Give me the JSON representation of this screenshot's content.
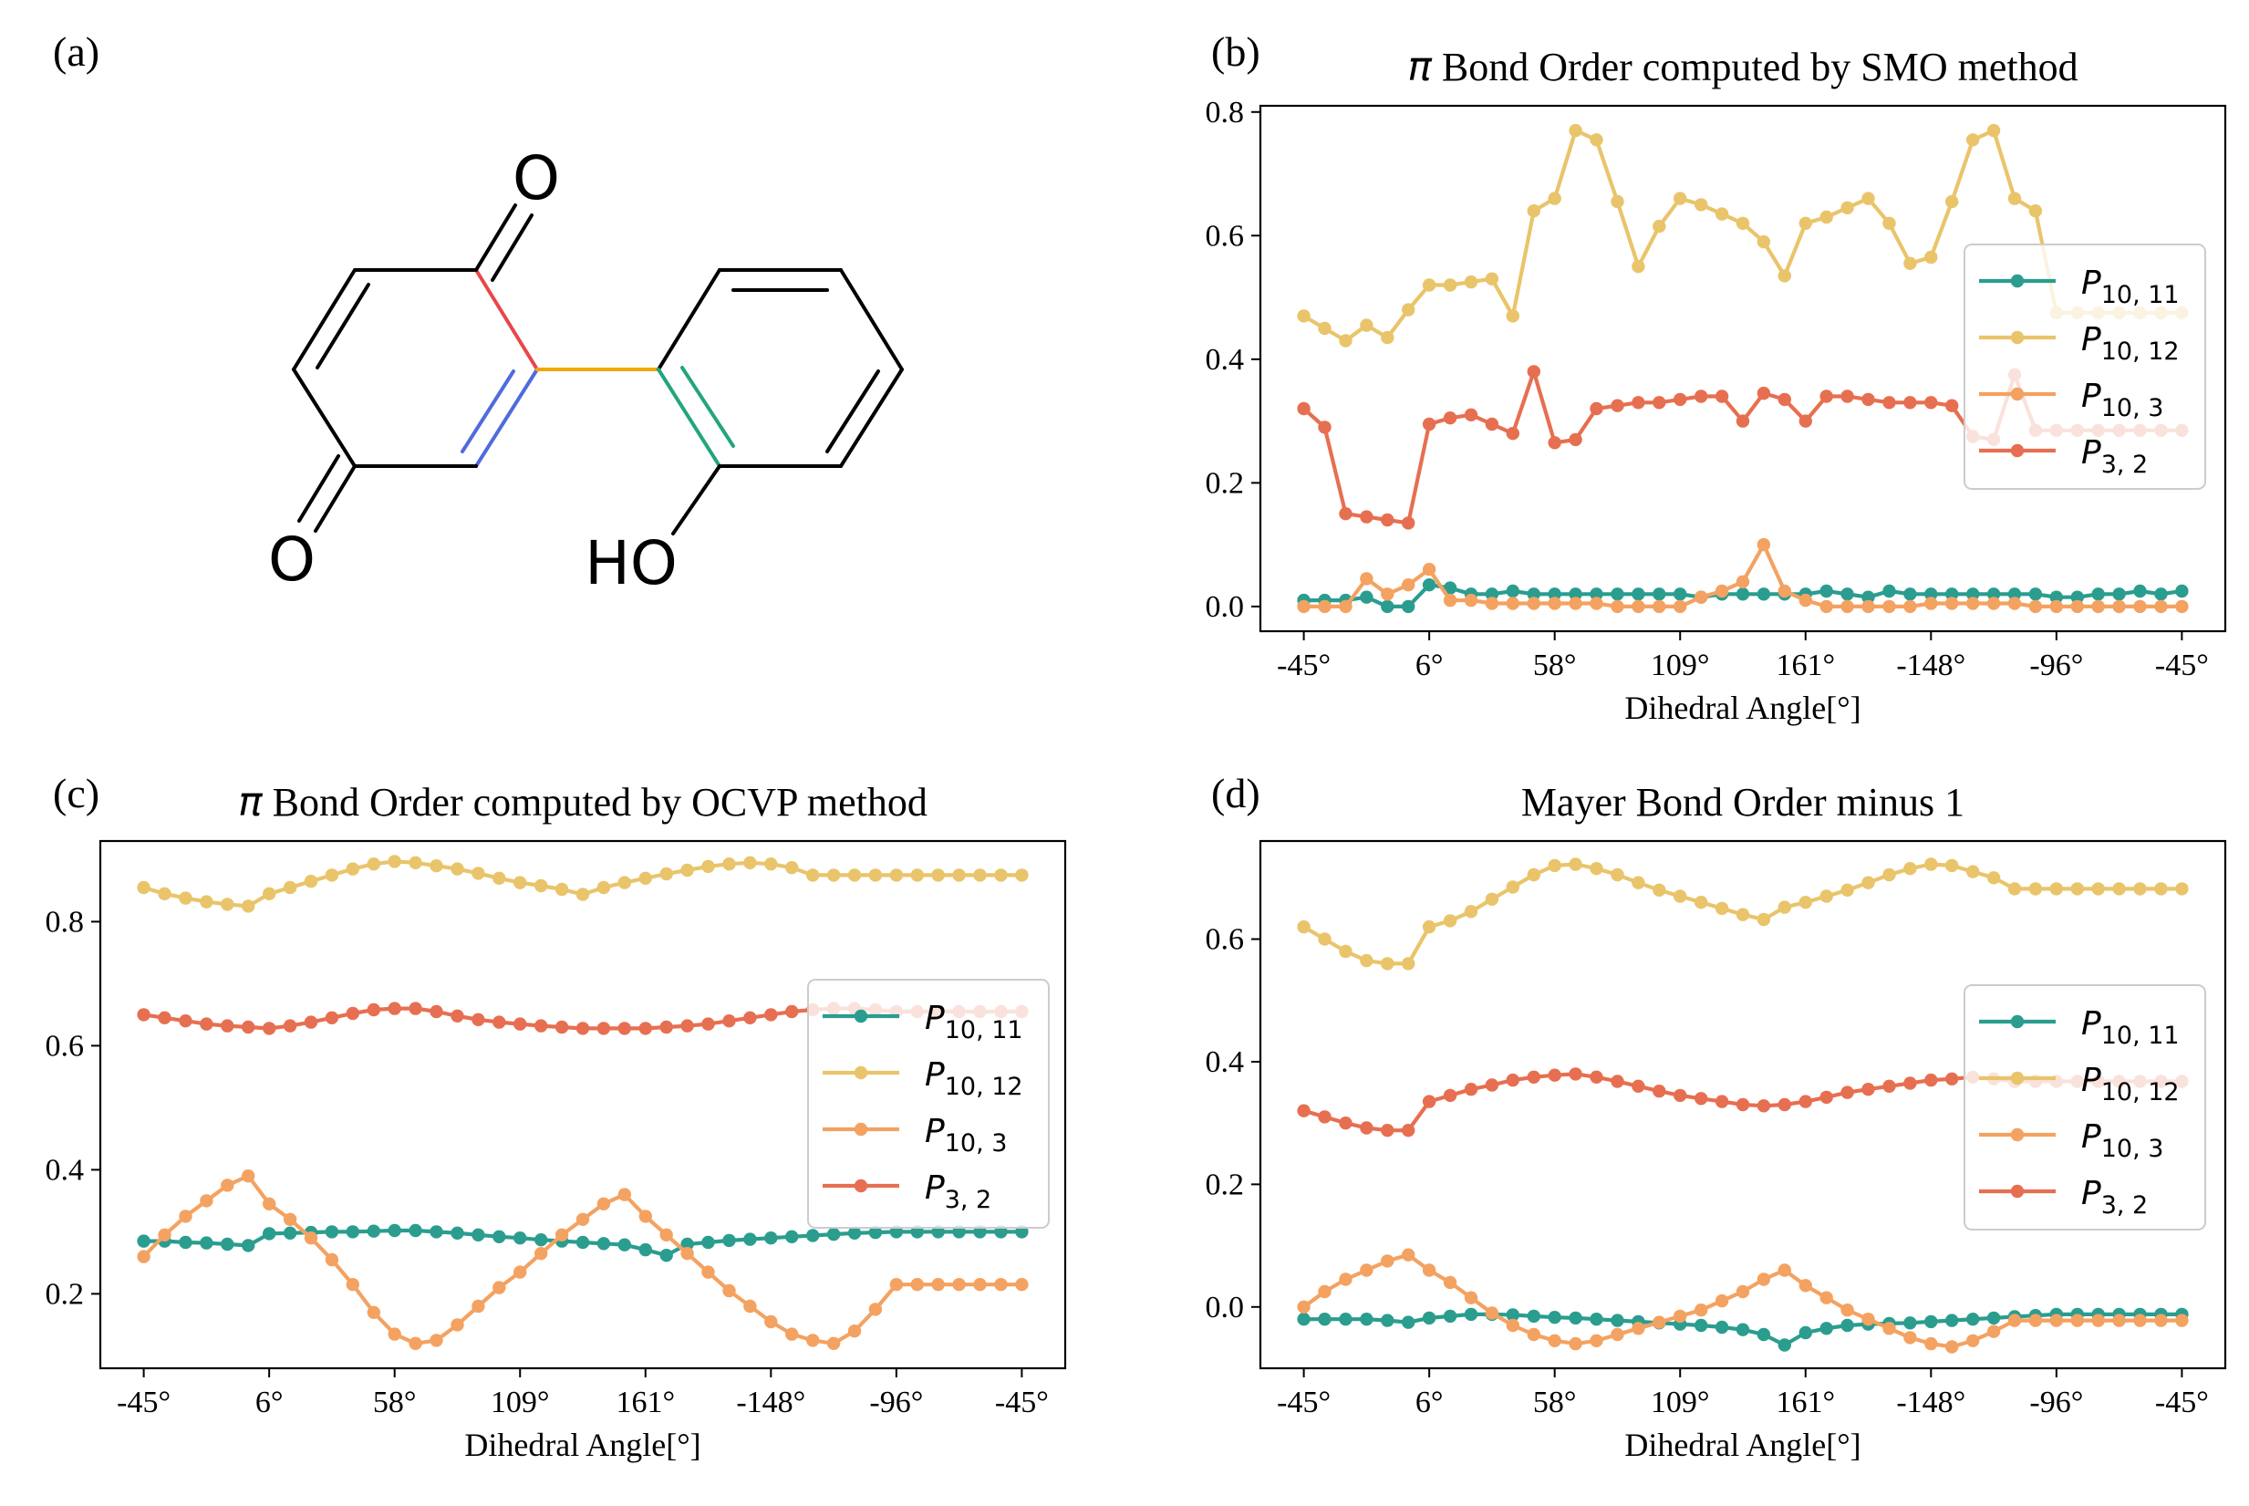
{
  "panel_labels": {
    "a": "(a)",
    "b": "(b)",
    "c": "(c)",
    "d": "(d)"
  },
  "molecule": {
    "atom_o_top": "O",
    "atom_o_bottom": "O",
    "atom_ho": "HO",
    "bond_colors": {
      "p10_12": "#e8474a",
      "p10_3": "#f1a800",
      "p3_2": "#4f6bdc",
      "p10_11": "#23a57f",
      "skeleton": "#000000"
    }
  },
  "colors": {
    "P10_11": "#2a9d8f",
    "P10_12": "#e9c46a",
    "P10_3": "#f4a261",
    "P3_2": "#e76f51"
  },
  "legend_entries": [
    {
      "key": "P10_11",
      "base": "P",
      "sub": "10, 11"
    },
    {
      "key": "P10_12",
      "base": "P",
      "sub": "10, 12"
    },
    {
      "key": "P10_3",
      "base": "P",
      "sub": "10, 3"
    },
    {
      "key": "P3_2",
      "base": "P",
      "sub": "3, 2"
    }
  ],
  "chart_data": [
    {
      "id": "b",
      "type": "line",
      "title_symbol": "π",
      "title": "Bond Order computed by SMO method",
      "xlabel": "Dihedral Angle[°]",
      "ylabel": "",
      "x_tick_labels": [
        "-45°",
        "6°",
        "58°",
        "109°",
        "161°",
        "-148°",
        "-96°",
        "-45°"
      ],
      "x_tick_index": [
        0,
        6,
        12,
        18,
        24,
        30,
        36,
        42
      ],
      "ylim": [
        -0.04,
        0.81
      ],
      "y_ticks": [
        0.0,
        0.2,
        0.4,
        0.6,
        0.8
      ],
      "y_tick_labels": [
        "0.0",
        "0.2",
        "0.4",
        "0.6",
        "0.8"
      ],
      "legend_position": "right",
      "series": [
        {
          "name": "P10,11",
          "key": "P10_11",
          "values": [
            0.01,
            0.01,
            0.01,
            0.015,
            0.0,
            0.0,
            0.035,
            0.03,
            0.02,
            0.02,
            0.025,
            0.02,
            0.02,
            0.02,
            0.02,
            0.02,
            0.02,
            0.02,
            0.02,
            0.015,
            0.02,
            0.02,
            0.02,
            0.02,
            0.02,
            0.025,
            0.02,
            0.015,
            0.025,
            0.02,
            0.02,
            0.02,
            0.02,
            0.02,
            0.02,
            0.02,
            0.015,
            0.015,
            0.02,
            0.02,
            0.025,
            0.02,
            0.025
          ]
        },
        {
          "name": "P10,12",
          "key": "P10_12",
          "values": [
            0.47,
            0.45,
            0.43,
            0.455,
            0.435,
            0.48,
            0.52,
            0.52,
            0.525,
            0.53,
            0.47,
            0.64,
            0.66,
            0.77,
            0.755,
            0.655,
            0.55,
            0.615,
            0.66,
            0.65,
            0.635,
            0.62,
            0.59,
            0.535,
            0.62,
            0.63,
            0.645,
            0.66,
            0.62,
            0.555,
            0.565,
            0.655,
            0.755,
            0.77,
            0.66,
            0.64,
            0.475,
            0.475,
            0.475,
            0.475,
            0.475,
            0.475,
            0.475
          ]
        },
        {
          "name": "P10,3",
          "key": "P10_3",
          "values": [
            0.0,
            0.0,
            0.0,
            0.045,
            0.02,
            0.035,
            0.06,
            0.01,
            0.01,
            0.005,
            0.005,
            0.005,
            0.005,
            0.005,
            0.005,
            0.0,
            0.0,
            0.0,
            0.0,
            0.015,
            0.025,
            0.04,
            0.1,
            0.025,
            0.01,
            0.0,
            0.0,
            0.0,
            0.0,
            0.0,
            0.005,
            0.005,
            0.005,
            0.005,
            0.005,
            0.0,
            0.0,
            0.0,
            0.0,
            0.0,
            0.0,
            0.0,
            0.0
          ]
        },
        {
          "name": "P3,2",
          "key": "P3_2",
          "values": [
            0.32,
            0.29,
            0.15,
            0.145,
            0.14,
            0.135,
            0.295,
            0.305,
            0.31,
            0.295,
            0.28,
            0.38,
            0.265,
            0.27,
            0.32,
            0.325,
            0.33,
            0.33,
            0.335,
            0.34,
            0.34,
            0.3,
            0.345,
            0.335,
            0.3,
            0.34,
            0.34,
            0.335,
            0.33,
            0.33,
            0.33,
            0.325,
            0.275,
            0.27,
            0.375,
            0.285,
            0.285,
            0.285,
            0.285,
            0.285,
            0.285,
            0.285,
            0.285
          ]
        }
      ]
    },
    {
      "id": "c",
      "type": "line",
      "title_symbol": "π",
      "title": "Bond Order computed by OCVP method",
      "xlabel": "Dihedral Angle[°]",
      "ylabel": "",
      "x_tick_labels": [
        "-45°",
        "6°",
        "58°",
        "109°",
        "161°",
        "-148°",
        "-96°",
        "-45°"
      ],
      "x_tick_index": [
        0,
        6,
        12,
        18,
        24,
        30,
        36,
        42
      ],
      "ylim": [
        0.08,
        0.93
      ],
      "y_ticks": [
        0.2,
        0.4,
        0.6,
        0.8
      ],
      "y_tick_labels": [
        "0.2",
        "0.4",
        "0.6",
        "0.8"
      ],
      "legend_position": "right",
      "series": [
        {
          "name": "P10,11",
          "key": "P10_11",
          "values": [
            0.285,
            0.285,
            0.283,
            0.282,
            0.28,
            0.278,
            0.297,
            0.298,
            0.299,
            0.3,
            0.3,
            0.301,
            0.302,
            0.302,
            0.3,
            0.298,
            0.295,
            0.292,
            0.29,
            0.287,
            0.285,
            0.283,
            0.281,
            0.279,
            0.271,
            0.262,
            0.28,
            0.283,
            0.286,
            0.288,
            0.29,
            0.292,
            0.294,
            0.296,
            0.298,
            0.299,
            0.3,
            0.3,
            0.3,
            0.3,
            0.3,
            0.3,
            0.3
          ]
        },
        {
          "name": "P10,12",
          "key": "P10_12",
          "values": [
            0.855,
            0.845,
            0.838,
            0.832,
            0.828,
            0.825,
            0.845,
            0.855,
            0.865,
            0.875,
            0.885,
            0.893,
            0.897,
            0.895,
            0.89,
            0.885,
            0.878,
            0.87,
            0.863,
            0.858,
            0.852,
            0.844,
            0.855,
            0.863,
            0.87,
            0.877,
            0.883,
            0.889,
            0.893,
            0.895,
            0.893,
            0.887,
            0.875,
            0.875,
            0.875,
            0.875,
            0.875,
            0.875,
            0.875,
            0.875,
            0.875,
            0.875,
            0.875
          ]
        },
        {
          "name": "P10,3",
          "key": "P10_3",
          "values": [
            0.26,
            0.295,
            0.325,
            0.35,
            0.375,
            0.39,
            0.345,
            0.32,
            0.29,
            0.255,
            0.215,
            0.17,
            0.135,
            0.12,
            0.125,
            0.15,
            0.18,
            0.21,
            0.235,
            0.265,
            0.295,
            0.32,
            0.345,
            0.36,
            0.325,
            0.295,
            0.265,
            0.235,
            0.205,
            0.18,
            0.155,
            0.135,
            0.125,
            0.12,
            0.14,
            0.175,
            0.215,
            0.215,
            0.215,
            0.215,
            0.215,
            0.215,
            0.215
          ]
        },
        {
          "name": "P3,2",
          "key": "P3_2",
          "values": [
            0.65,
            0.645,
            0.64,
            0.635,
            0.632,
            0.63,
            0.628,
            0.632,
            0.638,
            0.645,
            0.652,
            0.658,
            0.66,
            0.66,
            0.655,
            0.648,
            0.642,
            0.638,
            0.635,
            0.632,
            0.63,
            0.628,
            0.628,
            0.628,
            0.628,
            0.63,
            0.632,
            0.635,
            0.64,
            0.645,
            0.65,
            0.655,
            0.658,
            0.66,
            0.66,
            0.658,
            0.655,
            0.655,
            0.655,
            0.655,
            0.655,
            0.655,
            0.655
          ]
        }
      ]
    },
    {
      "id": "d",
      "type": "line",
      "title_symbol": "",
      "title": "Mayer Bond Order minus 1",
      "xlabel": "Dihedral Angle[°]",
      "ylabel": "",
      "x_tick_labels": [
        "-45°",
        "6°",
        "58°",
        "109°",
        "161°",
        "-148°",
        "-96°",
        "-45°"
      ],
      "x_tick_index": [
        0,
        6,
        12,
        18,
        24,
        30,
        36,
        42
      ],
      "ylim": [
        -0.1,
        0.76
      ],
      "y_ticks": [
        0.0,
        0.2,
        0.4,
        0.6
      ],
      "y_tick_labels": [
        "0.0",
        "0.2",
        "0.4",
        "0.6"
      ],
      "legend_position": "right",
      "series": [
        {
          "name": "P10,11",
          "key": "P10_11",
          "values": [
            -0.02,
            -0.02,
            -0.02,
            -0.02,
            -0.022,
            -0.025,
            -0.018,
            -0.015,
            -0.012,
            -0.012,
            -0.013,
            -0.015,
            -0.017,
            -0.018,
            -0.02,
            -0.022,
            -0.024,
            -0.026,
            -0.028,
            -0.03,
            -0.033,
            -0.037,
            -0.045,
            -0.062,
            -0.042,
            -0.035,
            -0.03,
            -0.028,
            -0.027,
            -0.026,
            -0.024,
            -0.022,
            -0.02,
            -0.018,
            -0.016,
            -0.014,
            -0.012,
            -0.012,
            -0.012,
            -0.012,
            -0.012,
            -0.012,
            -0.012
          ]
        },
        {
          "name": "P10,12",
          "key": "P10_12",
          "values": [
            0.62,
            0.6,
            0.58,
            0.565,
            0.56,
            0.56,
            0.62,
            0.63,
            0.645,
            0.665,
            0.685,
            0.705,
            0.72,
            0.722,
            0.715,
            0.705,
            0.692,
            0.68,
            0.67,
            0.66,
            0.65,
            0.64,
            0.632,
            0.652,
            0.66,
            0.67,
            0.68,
            0.692,
            0.705,
            0.715,
            0.722,
            0.72,
            0.71,
            0.7,
            0.682,
            0.682,
            0.682,
            0.682,
            0.682,
            0.682,
            0.682,
            0.682,
            0.682
          ]
        },
        {
          "name": "P10,3",
          "key": "P10_3",
          "values": [
            0.0,
            0.025,
            0.045,
            0.06,
            0.075,
            0.085,
            0.06,
            0.04,
            0.015,
            -0.01,
            -0.03,
            -0.045,
            -0.055,
            -0.06,
            -0.055,
            -0.045,
            -0.035,
            -0.025,
            -0.015,
            -0.005,
            0.01,
            0.025,
            0.045,
            0.06,
            0.035,
            0.015,
            -0.005,
            -0.02,
            -0.035,
            -0.05,
            -0.06,
            -0.065,
            -0.055,
            -0.04,
            -0.022,
            -0.022,
            -0.022,
            -0.022,
            -0.022,
            -0.022,
            -0.022,
            -0.022,
            -0.022
          ]
        },
        {
          "name": "P3,2",
          "key": "P3_2",
          "values": [
            0.32,
            0.31,
            0.3,
            0.292,
            0.288,
            0.288,
            0.335,
            0.345,
            0.355,
            0.362,
            0.37,
            0.375,
            0.378,
            0.38,
            0.375,
            0.368,
            0.36,
            0.352,
            0.345,
            0.34,
            0.335,
            0.33,
            0.328,
            0.33,
            0.335,
            0.342,
            0.35,
            0.355,
            0.36,
            0.365,
            0.37,
            0.372,
            0.375,
            0.372,
            0.368,
            0.368,
            0.368,
            0.368,
            0.368,
            0.368,
            0.368,
            0.368,
            0.368
          ]
        }
      ]
    }
  ]
}
